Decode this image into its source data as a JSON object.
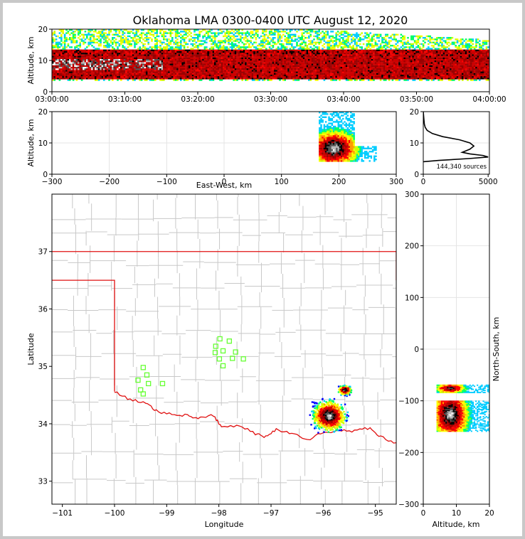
{
  "title": "Oklahoma LMA 0300-0400 UTC August 12, 2020",
  "colors": {
    "state_border": "#e01010",
    "county_lines": "#c8c8c8",
    "station_marker": "#66ff33",
    "grid": "#e4e4e4",
    "altitude_profile": "#000000"
  },
  "chart_data": [
    {
      "type": "heatmap",
      "panel": "time-height",
      "xlabel": "",
      "ylabel": "Altitude, km",
      "x_ticks": [
        "03:00:00",
        "03:10:00",
        "03:20:00",
        "03:30:00",
        "03:40:00",
        "03:50:00",
        "04:00:00"
      ],
      "y_ticks": [
        0,
        10,
        20
      ],
      "ylim": [
        0,
        20
      ],
      "altitude_band_km": [
        4,
        13
      ],
      "core_km": [
        7,
        10
      ]
    },
    {
      "type": "heatmap",
      "panel": "east-west-vs-altitude",
      "xlabel": "East-West, km",
      "ylabel": "Altitude, km",
      "x_ticks": [
        -300,
        -200,
        -100,
        0,
        100,
        200,
        300
      ],
      "y_ticks": [
        0,
        10,
        20
      ],
      "xlim": [
        -300,
        300
      ],
      "ylim": [
        0,
        20
      ],
      "cluster": {
        "x_km": [
          165,
          265
        ],
        "z_km": [
          4,
          20
        ],
        "core_x_km": 190,
        "core_z_km": 8
      }
    },
    {
      "type": "line",
      "panel": "altitude-histogram",
      "x_ticks": [
        0,
        5000
      ],
      "y_ticks": [
        0,
        10,
        20
      ],
      "xlim": [
        0,
        5100
      ],
      "ylim": [
        0,
        20
      ],
      "annotation": "144,340 sources",
      "profile": [
        {
          "count": 0,
          "alt": 4
        },
        {
          "count": 1200,
          "alt": 4.4
        },
        {
          "count": 3500,
          "alt": 5
        },
        {
          "count": 5000,
          "alt": 5.5
        },
        {
          "count": 4600,
          "alt": 6
        },
        {
          "count": 3600,
          "alt": 6.5
        },
        {
          "count": 3000,
          "alt": 7
        },
        {
          "count": 3300,
          "alt": 7.5
        },
        {
          "count": 3600,
          "alt": 8
        },
        {
          "count": 3900,
          "alt": 9
        },
        {
          "count": 3600,
          "alt": 10
        },
        {
          "count": 2800,
          "alt": 11
        },
        {
          "count": 1500,
          "alt": 12
        },
        {
          "count": 700,
          "alt": 13
        },
        {
          "count": 300,
          "alt": 14
        },
        {
          "count": 150,
          "alt": 15
        },
        {
          "count": 80,
          "alt": 16
        },
        {
          "count": 40,
          "alt": 18
        },
        {
          "count": 0,
          "alt": 20
        }
      ]
    },
    {
      "type": "scatter",
      "panel": "plan-view-map",
      "xlabel": "Longitude",
      "ylabel": "Latitude",
      "x_ticks": [
        -101,
        -100,
        -99,
        -98,
        -97,
        -96,
        -95
      ],
      "y_ticks": [
        33,
        34,
        35,
        36,
        37
      ],
      "xlim": [
        -101.2,
        -94.6
      ],
      "ylim": [
        32.6,
        38.0
      ],
      "clusters": [
        {
          "lon": -95.9,
          "lat": 34.15,
          "lon_spread": 0.3,
          "lat_spread": 0.25
        },
        {
          "lon": -95.6,
          "lat": 34.6,
          "lon_spread": 0.12,
          "lat_spread": 0.08
        }
      ],
      "stations": [
        {
          "lon": -99.45,
          "lat": 34.98
        },
        {
          "lon": -99.38,
          "lat": 34.85
        },
        {
          "lon": -99.55,
          "lat": 34.76
        },
        {
          "lon": -99.35,
          "lat": 34.7
        },
        {
          "lon": -99.5,
          "lat": 34.59
        },
        {
          "lon": -99.45,
          "lat": 34.52
        },
        {
          "lon": -99.08,
          "lat": 34.7
        },
        {
          "lon": -97.98,
          "lat": 35.48
        },
        {
          "lon": -97.8,
          "lat": 35.44
        },
        {
          "lon": -98.06,
          "lat": 35.35
        },
        {
          "lon": -97.92,
          "lat": 35.27
        },
        {
          "lon": -98.07,
          "lat": 35.24
        },
        {
          "lon": -97.68,
          "lat": 35.25
        },
        {
          "lon": -97.99,
          "lat": 35.13
        },
        {
          "lon": -97.74,
          "lat": 35.14
        },
        {
          "lon": -97.53,
          "lat": 35.13
        },
        {
          "lon": -97.92,
          "lat": 35.01
        }
      ]
    },
    {
      "type": "heatmap",
      "panel": "altitude-vs-north-south",
      "xlabel": "Altitude, km",
      "ylabel": "North-South, km",
      "x_ticks": [
        0,
        10,
        20
      ],
      "y_ticks": [
        -300,
        -200,
        -100,
        0,
        100,
        200,
        300
      ],
      "xlim": [
        0,
        20
      ],
      "ylim": [
        -300,
        300
      ],
      "clusters": [
        {
          "ns_km": [
            -160,
            -100
          ],
          "z_km": [
            4,
            20
          ],
          "core_ns_km": -128,
          "core_z_km": 8
        },
        {
          "ns_km": [
            -85,
            -70
          ],
          "z_km": [
            4,
            20
          ],
          "core_ns_km": -77,
          "core_z_km": 8
        }
      ]
    }
  ]
}
